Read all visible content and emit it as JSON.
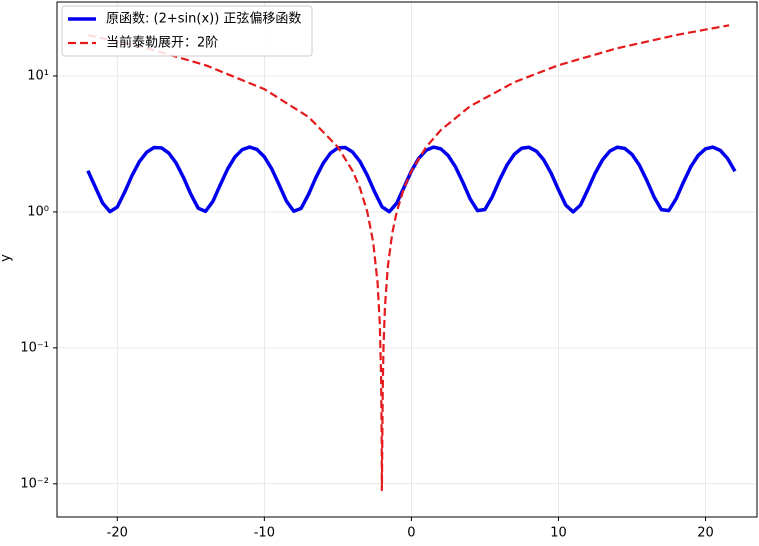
{
  "chart_data": {
    "type": "line",
    "ylabel": "y",
    "log_y": true,
    "grid": true,
    "legend": "upper left",
    "xlim": [
      -24.1,
      23.5
    ],
    "xticks": [
      -20,
      -10,
      0,
      10,
      20
    ],
    "ylim": [
      0.0057,
      35
    ],
    "yticks": [
      {
        "value": 0.01,
        "label": "10⁻²"
      },
      {
        "value": 0.1,
        "label": "10⁻¹"
      },
      {
        "value": 1,
        "label": "10⁰"
      },
      {
        "value": 10,
        "label": "10¹"
      }
    ],
    "series": [
      {
        "name": "原函数: (2+sin(x)) 正弦偏移函数",
        "color": "#0000ee",
        "linestyle": "solid",
        "x": [
          -22,
          -21.5,
          -21,
          -20.5,
          -20,
          -19.5,
          -19,
          -18.5,
          -18,
          -17.5,
          -17,
          -16.5,
          -16,
          -15.5,
          -15,
          -14.5,
          -14,
          -13.5,
          -13,
          -12.5,
          -12,
          -11.5,
          -11,
          -10.5,
          -10,
          -9.5,
          -9,
          -8.5,
          -8,
          -7.5,
          -7,
          -6.5,
          -6,
          -5.5,
          -5,
          -4.5,
          -4,
          -3.5,
          -3,
          -2.5,
          -2,
          -1.5,
          -1,
          -0.5,
          0,
          0.5,
          1,
          1.5,
          2,
          2.5,
          3,
          3.5,
          4,
          4.5,
          5,
          5.5,
          6,
          6.5,
          7,
          7.5,
          8,
          8.5,
          9,
          9.5,
          10,
          10.5,
          11,
          11.5,
          12,
          12.5,
          13,
          13.5,
          14,
          14.5,
          15,
          15.5,
          16,
          16.5,
          17,
          17.5,
          18,
          18.5,
          19,
          19.5,
          20,
          20.5,
          21,
          21.5,
          22
        ],
        "values": [
          2.009,
          1.529,
          1.163,
          1.004,
          1.087,
          1.395,
          1.85,
          2.343,
          2.751,
          2.978,
          2.961,
          2.712,
          2.288,
          1.793,
          1.35,
          1.065,
          1.009,
          1.196,
          1.58,
          2.066,
          2.537,
          2.875,
          3.0,
          2.88,
          2.544,
          2.075,
          1.588,
          1.202,
          1.011,
          1.062,
          1.343,
          1.785,
          2.279,
          2.706,
          2.959,
          2.978,
          2.757,
          2.351,
          1.859,
          1.402,
          1.091,
          1.003,
          1.159,
          1.521,
          2,
          2.479,
          2.841,
          2.997,
          2.909,
          2.598,
          2.141,
          1.649,
          1.243,
          1.022,
          1.041,
          1.294,
          1.721,
          2.215,
          2.657,
          2.938,
          2.989,
          2.798,
          2.412,
          1.925,
          1.456,
          1.12,
          1.0,
          1.125,
          1.463,
          1.934,
          2.42,
          2.804,
          2.991,
          2.935,
          2.65,
          2.207,
          1.712,
          1.288,
          1.039,
          1.022,
          1.249,
          1.657,
          2.15,
          2.605,
          2.913,
          2.996,
          2.837,
          2.471,
          1.991
        ]
      },
      {
        "name": "当前泰勒展开：2阶",
        "color": "#e41a1c",
        "linestyle": "dashed",
        "x": [
          -22,
          -18,
          -14,
          -10,
          -7,
          -5,
          -4,
          -3.5,
          -3,
          -2.6,
          -2.3,
          -2.15,
          -2.06,
          -2.02,
          -2.009,
          -1.98,
          -1.95,
          -1.9,
          -1.8,
          -1.6,
          -1.3,
          -1,
          -0.5,
          0,
          1,
          2,
          4,
          7,
          10,
          14,
          18,
          21.6
        ],
        "values": [
          20,
          16,
          12,
          8,
          5,
          3,
          2,
          1.5,
          1,
          0.6,
          0.3,
          0.15,
          0.06,
          0.02,
          0.009,
          0.02,
          0.05,
          0.1,
          0.2,
          0.4,
          0.7,
          1,
          1.5,
          2,
          3,
          4,
          6,
          9,
          12,
          16,
          20,
          23.6
        ]
      }
    ]
  }
}
